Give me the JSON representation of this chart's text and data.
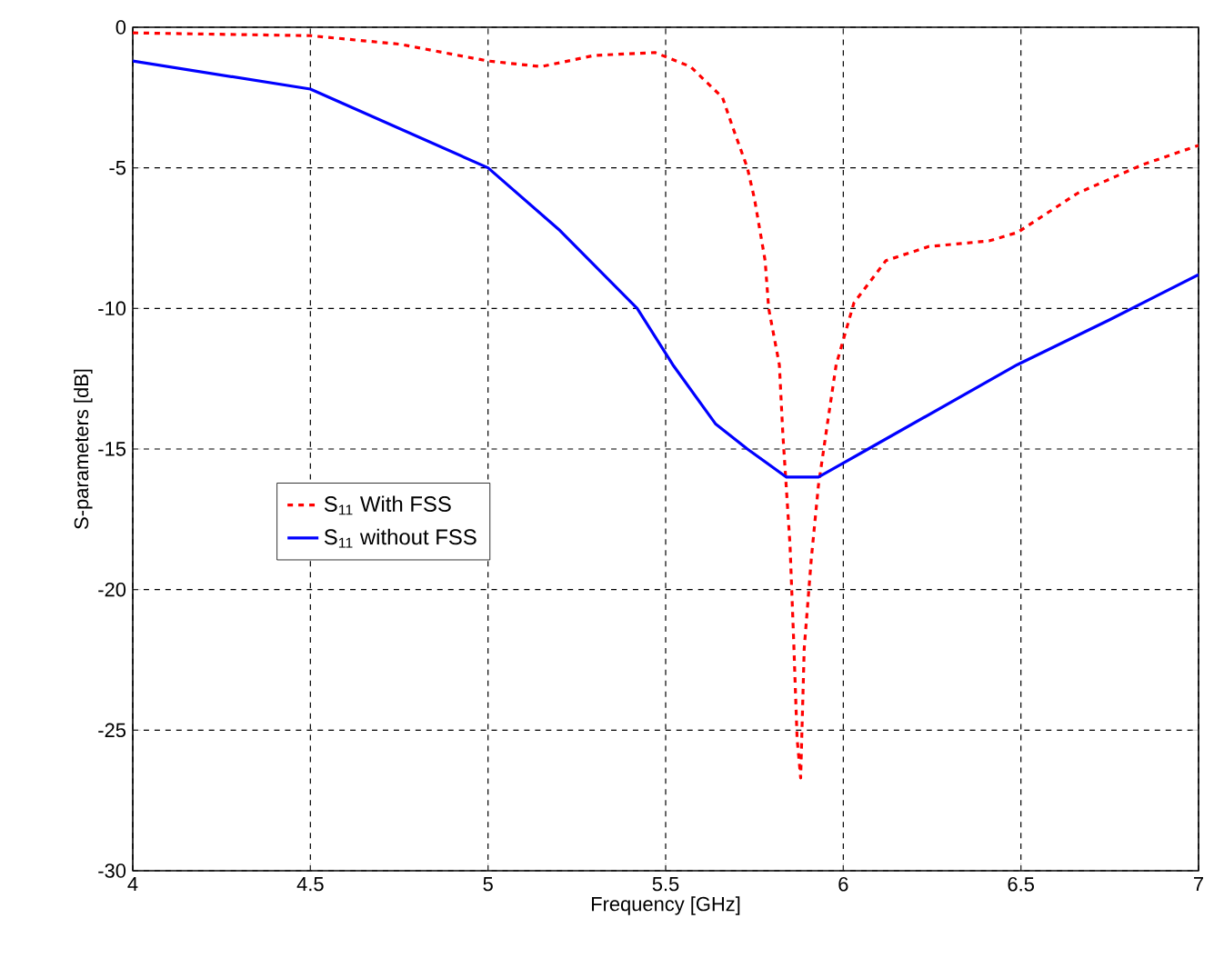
{
  "chart_data": {
    "type": "line",
    "xlabel": "Frequency [GHz]",
    "ylabel": "S-parameters [dB]",
    "xlim": [
      4,
      7
    ],
    "ylim": [
      -30,
      0
    ],
    "xticks": [
      4,
      4.5,
      5,
      5.5,
      6,
      6.5,
      7
    ],
    "yticks": [
      -30,
      -25,
      -20,
      -15,
      -10,
      -5,
      0
    ],
    "grid": true,
    "legend": "left",
    "marker": "none",
    "series": [
      {
        "name": "S$_{11}$ With FSS",
        "color": "#ff0000",
        "line_style": "dashed",
        "x": [
          4,
          4.5,
          4.75,
          5.0,
          5.15,
          5.3,
          5.47,
          5.57,
          5.66,
          5.69,
          5.73,
          5.75,
          5.78,
          5.79,
          5.82,
          5.83,
          5.85,
          5.86,
          5.87,
          5.88,
          5.89,
          5.91,
          5.93,
          5.96,
          5.98,
          6.03,
          6.12,
          6.24,
          6.41,
          6.49,
          6.66,
          6.84,
          7
        ],
        "values": [
          -0.2,
          -0.3,
          -0.6,
          -1.2,
          -1.4,
          -1.0,
          -0.9,
          -1.4,
          -2.5,
          -3.6,
          -5.0,
          -6.1,
          -8.3,
          -10,
          -12,
          -14.5,
          -18.4,
          -21.7,
          -25.3,
          -26.7,
          -22.1,
          -18.9,
          -16.3,
          -13.7,
          -12,
          -9.8,
          -8.3,
          -7.8,
          -7.6,
          -7.3,
          -5.9,
          -4.9,
          -4.2
        ]
      },
      {
        "name": "S$_{11}$ without FSS",
        "color": "#0000ff",
        "line_style": "solid",
        "x": [
          4,
          4.5,
          5.0,
          5.2,
          5.42,
          5.52,
          5.64,
          5.73,
          5.84,
          5.93,
          6.07,
          6.49,
          6.75,
          7
        ],
        "values": [
          -1.2,
          -2.2,
          -5.0,
          -7.2,
          -10,
          -12,
          -14.1,
          -15,
          -16,
          -16,
          -15,
          -12,
          -10.4,
          -8.8
        ]
      }
    ]
  }
}
